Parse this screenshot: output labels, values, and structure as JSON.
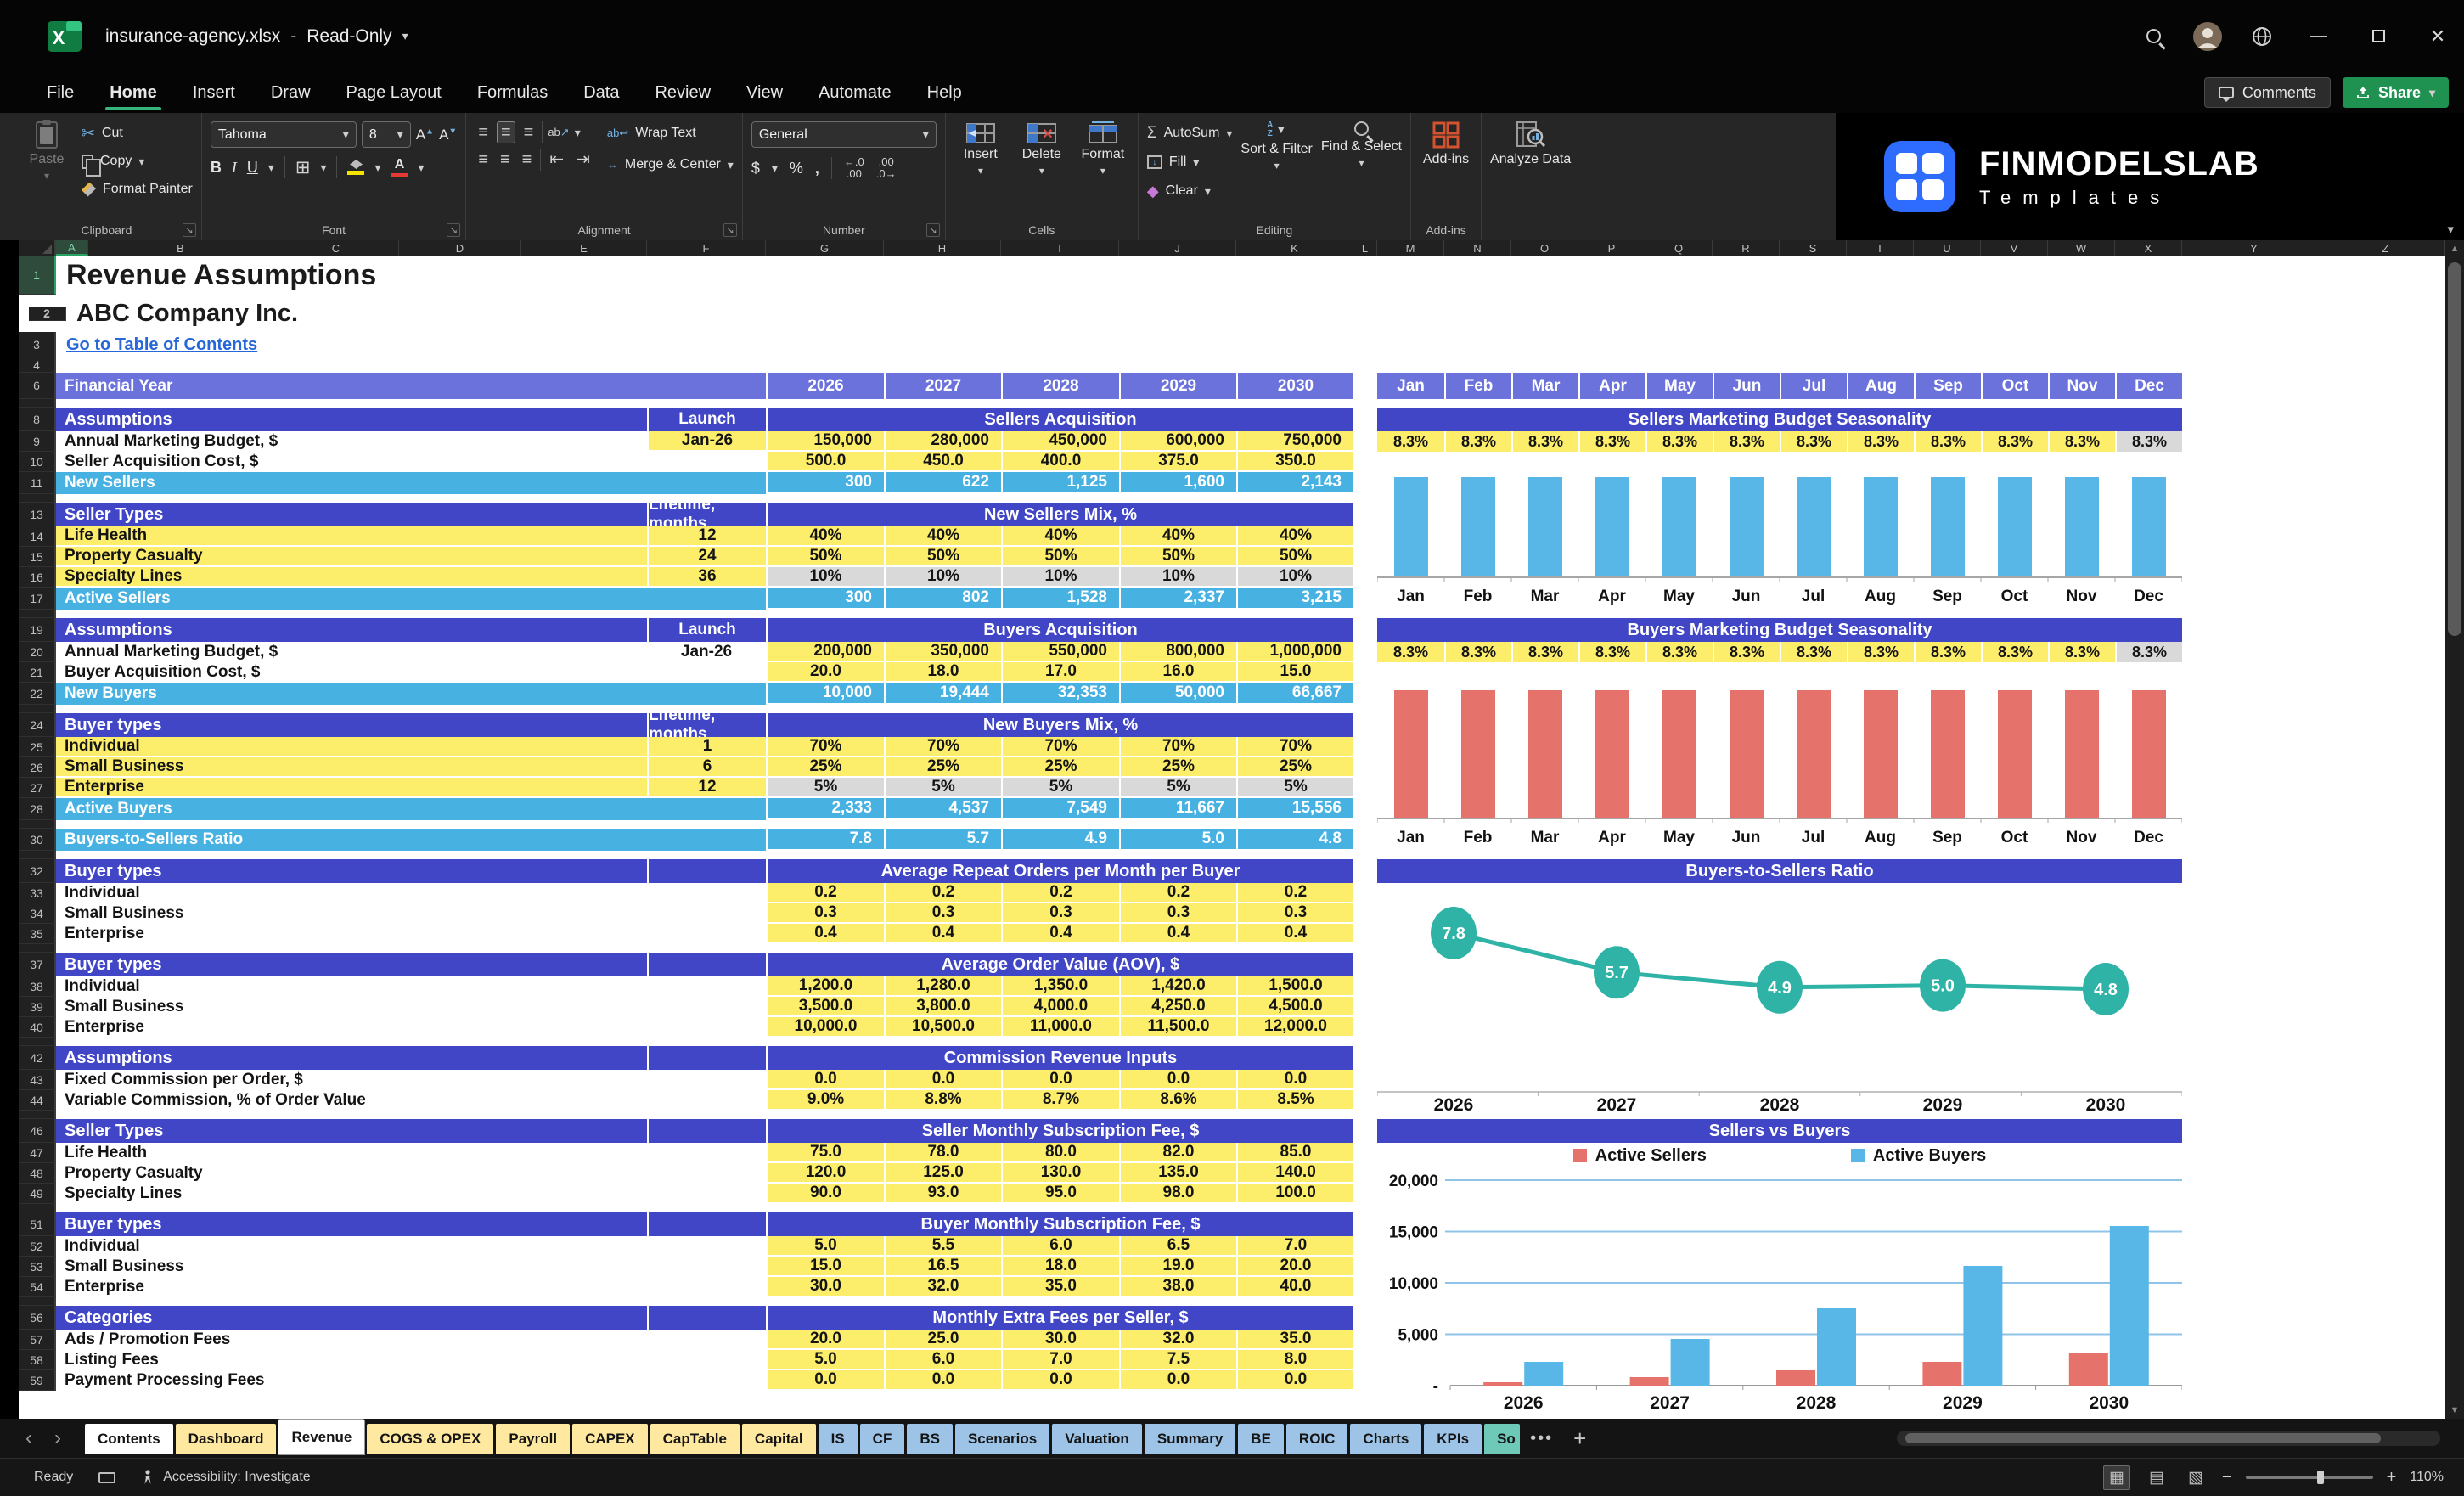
{
  "window": {
    "filename": "insurance-agency.xlsx",
    "separator": "-",
    "mode": "Read-Only"
  },
  "menubar": {
    "tabs": [
      "File",
      "Home",
      "Insert",
      "Draw",
      "Page Layout",
      "Formulas",
      "Data",
      "Review",
      "View",
      "Automate",
      "Help"
    ],
    "active_tab": "Home",
    "comments": "Comments",
    "share": "Share"
  },
  "ribbon": {
    "paste": "Paste",
    "cut": "Cut",
    "copy": "Copy",
    "format_painter": "Format Painter",
    "clipboard_group": "Clipboard",
    "font_name": "Tahoma",
    "font_size": "8",
    "font_group": "Font",
    "wrap_text": "Wrap Text",
    "merge_center": "Merge & Center",
    "alignment_group": "Alignment",
    "number_format": "General",
    "number_group": "Number",
    "insert": "Insert",
    "delete": "Delete",
    "format": "Format",
    "cells_group": "Cells",
    "autosum": "AutoSum",
    "fill": "Fill",
    "clear": "Clear",
    "sort_filter": "Sort & Filter",
    "find_select": "Find & Select",
    "editing_group": "Editing",
    "addins": "Add-ins",
    "addins_group": "Add-ins",
    "analyze_data": "Analyze Data"
  },
  "brand": {
    "name": "FINMODELSLAB",
    "tagline": "Templates"
  },
  "grid": {
    "column_letters": [
      "A",
      "B",
      "C",
      "D",
      "E",
      "F",
      "G",
      "H",
      "I",
      "J",
      "K",
      "L",
      "M",
      "N",
      "O",
      "P",
      "Q",
      "R",
      "S",
      "T",
      "U",
      "V",
      "W",
      "X",
      "Y",
      "Z"
    ]
  },
  "sheet": {
    "rows": [
      {
        "n": "1",
        "type": "title",
        "label": "Revenue Assumptions"
      },
      {
        "n": "2",
        "type": "subtitle",
        "label": "ABC Company Inc."
      },
      {
        "n": "3",
        "type": "link",
        "label": "Go to Table of Contents"
      },
      {
        "n": "4",
        "type": "blank"
      },
      {
        "n": "6",
        "type": "fy",
        "label": "Financial Year",
        "values": [
          "2026",
          "2027",
          "2028",
          "2029",
          "2030"
        ]
      },
      {
        "n": "7",
        "type": "gap"
      },
      {
        "n": "8",
        "type": "section",
        "label": "Assumptions",
        "launch": "Launch",
        "merged": "Sellers Acquisition"
      },
      {
        "n": "9",
        "type": "data",
        "label": "Annual Marketing Budget, $",
        "launch": "Jan-26",
        "launch_yellow": true,
        "align": "right",
        "values": [
          "150,000",
          "280,000",
          "450,000",
          "600,000",
          "750,000"
        ]
      },
      {
        "n": "10",
        "type": "data",
        "label": "Seller Acquisition Cost, $",
        "values": [
          "500.0",
          "450.0",
          "400.0",
          "375.0",
          "350.0"
        ]
      },
      {
        "n": "11",
        "type": "total",
        "label": "New Sellers",
        "values": [
          "300",
          "622",
          "1,125",
          "1,600",
          "2,143"
        ]
      },
      {
        "n": "12",
        "type": "gap"
      },
      {
        "n": "13",
        "type": "section",
        "label": "Seller Types",
        "launch": "Lifetime, months",
        "merged": "New Sellers Mix, %"
      },
      {
        "n": "14",
        "type": "data",
        "label": "Life Health",
        "label_yellow": true,
        "launch": "12",
        "launch_yellow": true,
        "values": [
          "40%",
          "40%",
          "40%",
          "40%",
          "40%"
        ]
      },
      {
        "n": "15",
        "type": "data",
        "label": "Property Casualty",
        "label_yellow": true,
        "launch": "24",
        "launch_yellow": true,
        "values": [
          "50%",
          "50%",
          "50%",
          "50%",
          "50%"
        ]
      },
      {
        "n": "16",
        "type": "data",
        "label": "Specialty Lines",
        "label_yellow": true,
        "launch": "36",
        "launch_yellow": true,
        "gray": true,
        "values": [
          "10%",
          "10%",
          "10%",
          "10%",
          "10%"
        ]
      },
      {
        "n": "17",
        "type": "total",
        "label": "Active Sellers",
        "values": [
          "300",
          "802",
          "1,528",
          "2,337",
          "3,215"
        ]
      },
      {
        "n": "18",
        "type": "gap"
      },
      {
        "n": "19",
        "type": "section",
        "label": "Assumptions",
        "launch": "Launch",
        "merged": "Buyers Acquisition"
      },
      {
        "n": "20",
        "type": "data",
        "label": "Annual Marketing Budget, $",
        "launch": "Jan-26",
        "align": "right",
        "values": [
          "200,000",
          "350,000",
          "550,000",
          "800,000",
          "1,000,000"
        ]
      },
      {
        "n": "21",
        "type": "data",
        "label": "Buyer Acquisition Cost, $",
        "values": [
          "20.0",
          "18.0",
          "17.0",
          "16.0",
          "15.0"
        ]
      },
      {
        "n": "22",
        "type": "total",
        "label": "New Buyers",
        "values": [
          "10,000",
          "19,444",
          "32,353",
          "50,000",
          "66,667"
        ]
      },
      {
        "n": "23",
        "type": "gap"
      },
      {
        "n": "24",
        "type": "section",
        "label": "Buyer types",
        "launch": "Lifetime, months",
        "merged": "New Buyers Mix, %"
      },
      {
        "n": "25",
        "type": "data",
        "label": "Individual",
        "label_yellow": true,
        "launch": "1",
        "launch_yellow": true,
        "values": [
          "70%",
          "70%",
          "70%",
          "70%",
          "70%"
        ]
      },
      {
        "n": "26",
        "type": "data",
        "label": "Small Business",
        "label_yellow": true,
        "launch": "6",
        "launch_yellow": true,
        "values": [
          "25%",
          "25%",
          "25%",
          "25%",
          "25%"
        ]
      },
      {
        "n": "27",
        "type": "data",
        "label": "Enterprise",
        "label_yellow": true,
        "launch": "12",
        "launch_yellow": true,
        "gray": true,
        "values": [
          "5%",
          "5%",
          "5%",
          "5%",
          "5%"
        ]
      },
      {
        "n": "28",
        "type": "total",
        "label": "Active Buyers",
        "values": [
          "2,333",
          "4,537",
          "7,549",
          "11,667",
          "15,556"
        ]
      },
      {
        "n": "29",
        "type": "gap"
      },
      {
        "n": "30",
        "type": "total",
        "label": "Buyers-to-Sellers Ratio",
        "values": [
          "7.8",
          "5.7",
          "4.9",
          "5.0",
          "4.8"
        ]
      },
      {
        "n": "31",
        "type": "gap"
      },
      {
        "n": "32",
        "type": "section",
        "label": "Buyer types",
        "merged": "Average Repeat Orders per Month per Buyer"
      },
      {
        "n": "33",
        "type": "data",
        "label": "Individual",
        "values": [
          "0.2",
          "0.2",
          "0.2",
          "0.2",
          "0.2"
        ]
      },
      {
        "n": "34",
        "type": "data",
        "label": "Small Business",
        "values": [
          "0.3",
          "0.3",
          "0.3",
          "0.3",
          "0.3"
        ]
      },
      {
        "n": "35",
        "type": "data",
        "label": "Enterprise",
        "values": [
          "0.4",
          "0.4",
          "0.4",
          "0.4",
          "0.4"
        ]
      },
      {
        "n": "36",
        "type": "gap"
      },
      {
        "n": "37",
        "type": "section",
        "label": "Buyer types",
        "merged": "Average Order Value (AOV), $"
      },
      {
        "n": "38",
        "type": "data",
        "label": "Individual",
        "values": [
          "1,200.0",
          "1,280.0",
          "1,350.0",
          "1,420.0",
          "1,500.0"
        ]
      },
      {
        "n": "39",
        "type": "data",
        "label": "Small Business",
        "values": [
          "3,500.0",
          "3,800.0",
          "4,000.0",
          "4,250.0",
          "4,500.0"
        ]
      },
      {
        "n": "40",
        "type": "data",
        "label": "Enterprise",
        "values": [
          "10,000.0",
          "10,500.0",
          "11,000.0",
          "11,500.0",
          "12,000.0"
        ]
      },
      {
        "n": "41",
        "type": "gap"
      },
      {
        "n": "42",
        "type": "section",
        "label": "Assumptions",
        "merged": "Commission Revenue Inputs"
      },
      {
        "n": "43",
        "type": "data",
        "label": "Fixed Commission per Order, $",
        "values": [
          "0.0",
          "0.0",
          "0.0",
          "0.0",
          "0.0"
        ]
      },
      {
        "n": "44",
        "type": "data",
        "label": "Variable Commission, % of Order Value",
        "values": [
          "9.0%",
          "8.8%",
          "8.7%",
          "8.6%",
          "8.5%"
        ]
      },
      {
        "n": "45",
        "type": "gap"
      },
      {
        "n": "46",
        "type": "section",
        "label": "Seller Types",
        "merged": "Seller Monthly Subscription Fee, $"
      },
      {
        "n": "47",
        "type": "data",
        "label": "Life Health",
        "values": [
          "75.0",
          "78.0",
          "80.0",
          "82.0",
          "85.0"
        ]
      },
      {
        "n": "48",
        "type": "data",
        "label": "Property Casualty",
        "values": [
          "120.0",
          "125.0",
          "130.0",
          "135.0",
          "140.0"
        ]
      },
      {
        "n": "49",
        "type": "data",
        "label": "Specialty Lines",
        "values": [
          "90.0",
          "93.0",
          "95.0",
          "98.0",
          "100.0"
        ]
      },
      {
        "n": "50",
        "type": "gap"
      },
      {
        "n": "51",
        "type": "section",
        "label": "Buyer types",
        "merged": "Buyer Monthly Subscription Fee, $"
      },
      {
        "n": "52",
        "type": "data",
        "label": "Individual",
        "values": [
          "5.0",
          "5.5",
          "6.0",
          "6.5",
          "7.0"
        ]
      },
      {
        "n": "53",
        "type": "data",
        "label": "Small Business",
        "values": [
          "15.0",
          "16.5",
          "18.0",
          "19.0",
          "20.0"
        ]
      },
      {
        "n": "54",
        "type": "data",
        "label": "Enterprise",
        "values": [
          "30.0",
          "32.0",
          "35.0",
          "38.0",
          "40.0"
        ]
      },
      {
        "n": "55",
        "type": "gap"
      },
      {
        "n": "56",
        "type": "section",
        "label": "Categories",
        "merged": "Monthly Extra Fees per Seller, $"
      },
      {
        "n": "57",
        "type": "data",
        "label": "Ads / Promotion Fees",
        "values": [
          "20.0",
          "25.0",
          "30.0",
          "32.0",
          "35.0"
        ]
      },
      {
        "n": "58",
        "type": "data",
        "label": "Listing Fees",
        "values": [
          "5.0",
          "6.0",
          "7.0",
          "7.5",
          "8.0"
        ]
      },
      {
        "n": "59",
        "type": "data",
        "label": "Payment Processing Fees",
        "values": [
          "0.0",
          "0.0",
          "0.0",
          "0.0",
          "0.0"
        ]
      }
    ]
  },
  "right_panel": {
    "months": [
      "Jan",
      "Feb",
      "Mar",
      "Apr",
      "May",
      "Jun",
      "Jul",
      "Aug",
      "Sep",
      "Oct",
      "Nov",
      "Dec"
    ],
    "sections": [
      {
        "title": "Sellers Marketing Budget Seasonality",
        "pct": [
          "8.3%",
          "8.3%",
          "8.3%",
          "8.3%",
          "8.3%",
          "8.3%",
          "8.3%",
          "8.3%",
          "8.3%",
          "8.3%",
          "8.3%",
          "8.3%"
        ],
        "last_gray": true
      },
      {
        "title": "Buyers Marketing Budget Seasonality",
        "pct": [
          "8.3%",
          "8.3%",
          "8.3%",
          "8.3%",
          "8.3%",
          "8.3%",
          "8.3%",
          "8.3%",
          "8.3%",
          "8.3%",
          "8.3%",
          "8.3%"
        ],
        "last_gray": true
      }
    ]
  },
  "chart_data": [
    {
      "id": "sellers-seasonality",
      "type": "bar",
      "title": "Sellers Marketing Budget Seasonality",
      "categories": [
        "Jan",
        "Feb",
        "Mar",
        "Apr",
        "May",
        "Jun",
        "Jul",
        "Aug",
        "Sep",
        "Oct",
        "Nov",
        "Dec"
      ],
      "values": [
        8.3,
        8.3,
        8.3,
        8.3,
        8.3,
        8.3,
        8.3,
        8.3,
        8.3,
        8.3,
        8.3,
        8.3
      ],
      "unit": "%",
      "bar_color": "#58B7E7",
      "ylim": [
        0,
        9
      ],
      "grid": false
    },
    {
      "id": "buyers-seasonality",
      "type": "bar",
      "title": "Buyers Marketing Budget Seasonality",
      "categories": [
        "Jan",
        "Feb",
        "Mar",
        "Apr",
        "May",
        "Jun",
        "Jul",
        "Aug",
        "Sep",
        "Oct",
        "Nov",
        "Dec"
      ],
      "values": [
        8.3,
        8.3,
        8.3,
        8.3,
        8.3,
        8.3,
        8.3,
        8.3,
        8.3,
        8.3,
        8.3,
        8.3
      ],
      "unit": "%",
      "bar_color": "#E5736C",
      "ylim": [
        0,
        9
      ],
      "grid": false
    },
    {
      "id": "buyers-to-sellers-ratio",
      "type": "line",
      "title": "Buyers-to-Sellers Ratio",
      "x": [
        "2026",
        "2027",
        "2028",
        "2029",
        "2030"
      ],
      "values": [
        7.8,
        5.7,
        4.9,
        5.0,
        4.8
      ],
      "marker_color": "#2FB3A6",
      "ylim": [
        4,
        8.5
      ],
      "grid": false
    },
    {
      "id": "sellers-vs-buyers",
      "type": "bar",
      "title": "Sellers vs Buyers",
      "categories": [
        "2026",
        "2027",
        "2028",
        "2029",
        "2030"
      ],
      "series": [
        {
          "name": "Active Sellers",
          "color": "#E5736C",
          "values": [
            300,
            802,
            1528,
            2337,
            3215
          ]
        },
        {
          "name": "Active Buyers",
          "color": "#58B7E7",
          "values": [
            2333,
            4537,
            7549,
            11667,
            15556
          ]
        }
      ],
      "ylabels": [
        "20,000",
        "15,000",
        "10,000",
        "5,000",
        "-"
      ],
      "ylim": [
        0,
        20000
      ],
      "legend_position": "top",
      "grid": true,
      "gridline_color": "#8FC4E8"
    }
  ],
  "sheet_tabs": {
    "items": [
      {
        "label": "Contents",
        "color": "#FFFFFF"
      },
      {
        "label": "Dashboard",
        "color": "#FFE9A0"
      },
      {
        "label": "Revenue",
        "color": "#FFFFFF",
        "active": true
      },
      {
        "label": "COGS & OPEX",
        "color": "#FFE9A0"
      },
      {
        "label": "Payroll",
        "color": "#FFE9A0"
      },
      {
        "label": "CAPEX",
        "color": "#FFE9A0"
      },
      {
        "label": "CapTable",
        "color": "#FFE9A0"
      },
      {
        "label": "Capital",
        "color": "#FFE9A0"
      },
      {
        "label": "IS",
        "color": "#9DC3E6"
      },
      {
        "label": "CF",
        "color": "#9DC3E6"
      },
      {
        "label": "BS",
        "color": "#9DC3E6"
      },
      {
        "label": "Scenarios",
        "color": "#9DC3E6"
      },
      {
        "label": "Valuation",
        "color": "#9DC3E6"
      },
      {
        "label": "Summary",
        "color": "#9DC3E6"
      },
      {
        "label": "BE",
        "color": "#9DC3E6"
      },
      {
        "label": "ROIC",
        "color": "#9DC3E6"
      },
      {
        "label": "Charts",
        "color": "#9DC3E6"
      },
      {
        "label": "KPIs",
        "color": "#9DC3E6"
      },
      {
        "label": "So",
        "color": "#6FC9B8",
        "clipped": true
      }
    ],
    "overflow": "•••",
    "add": "+"
  },
  "status_bar": {
    "ready": "Ready",
    "accessibility": "Accessibility: Investigate",
    "zoom_out": "−",
    "zoom_in": "+",
    "zoom_level": "110%"
  }
}
